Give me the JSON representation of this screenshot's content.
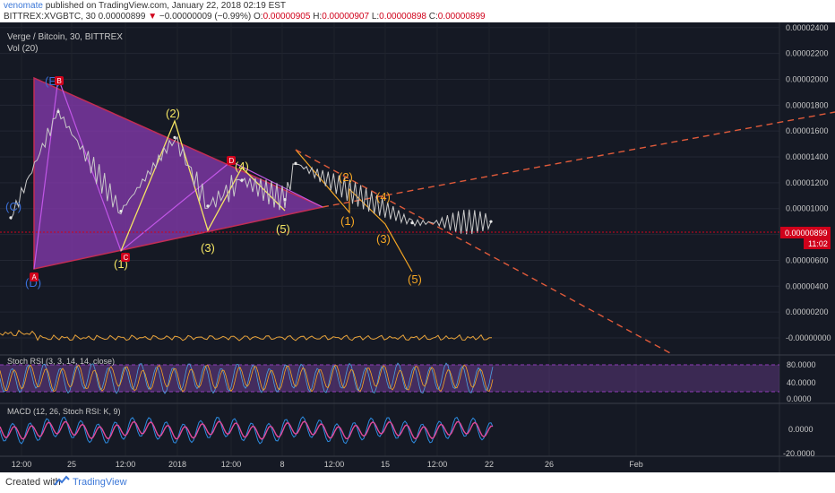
{
  "header": {
    "user": "venomate",
    "published": "published on TradingView.com, January 22, 2018 02:19 EST",
    "symbol_line": "BITTREX:XVGBTC, 30",
    "price": "0.00000899",
    "arrow": "▼",
    "change": "−0.00000009 (−0.99%)",
    "o_label": "O:",
    "o_value": "0.00000905",
    "h_label": "H:",
    "h_value": "0.00000907",
    "l_label": "L:",
    "l_value": "0.00000898",
    "c_label": "C:",
    "c_value": "0.00000899"
  },
  "chart": {
    "title": "Verge / Bitcoin, 30, BITTREX",
    "vol_label": "Vol (20)",
    "price_ticks": [
      "0.00002400",
      "0.00002200",
      "0.00002000",
      "0.00001800",
      "0.00001600",
      "0.00001400",
      "0.00001200",
      "0.00001000",
      "0.00000800",
      "0.00000600",
      "0.00000400",
      "0.00000200",
      "-0.00000000"
    ],
    "current_price": "0.00000899",
    "countdown": "11:02",
    "stoch_label": "Stoch RSI (3, 3, 14, 14, close)",
    "stoch_ticks": [
      "80.0000",
      "40.0000",
      "0.0000"
    ],
    "macd_label": "MACD (12, 26, Stoch RSI: K, 9)",
    "macd_ticks": [
      "0.0000",
      "-20.0000"
    ],
    "time_ticks": [
      "12:00",
      "25",
      "12:00",
      "2018",
      "12:00",
      "8",
      "12:00",
      "15",
      "12:00",
      "22",
      "26",
      "Feb"
    ],
    "colors": {
      "background": "#151924",
      "triangle": "#8e3bb7",
      "wave_yellow": "#f5e663",
      "wave_orange": "#f5a623",
      "trend_red": "#e05a3a",
      "price_line": "#d0021b",
      "candles": "#c9c9c9"
    }
  },
  "annotations": {
    "waves_purple": [
      "(C)",
      "(E)",
      "(D)"
    ],
    "waves_yellow": [
      "(2)",
      "(4)",
      "(1)",
      "(3)",
      "(5)"
    ],
    "waves_orange": [
      "(2)",
      "(4)",
      "(1)",
      "(3)",
      "(5)"
    ],
    "markers": [
      "A",
      "B",
      "C",
      "D"
    ]
  },
  "chart_data": {
    "type": "line",
    "title": "Verge / Bitcoin, 30, BITTREX",
    "x": [
      "12:00",
      "25",
      "12:00",
      "2018",
      "12:00",
      "8",
      "12:00",
      "15",
      "12:00",
      "22"
    ],
    "series": [
      {
        "values": [
          9.3e-06,
          1.75e-05,
          9.8e-06,
          1.55e-05,
          1.02e-05,
          1.22e-05,
          1.07e-05,
          1.35e-05,
          8.9e-06,
          9e-06
        ]
      }
    ],
    "ylim": [
      0,
      2.44e-05
    ],
    "grid": true
  },
  "footer": {
    "made_with": "Created with",
    "brand": "TradingView"
  }
}
